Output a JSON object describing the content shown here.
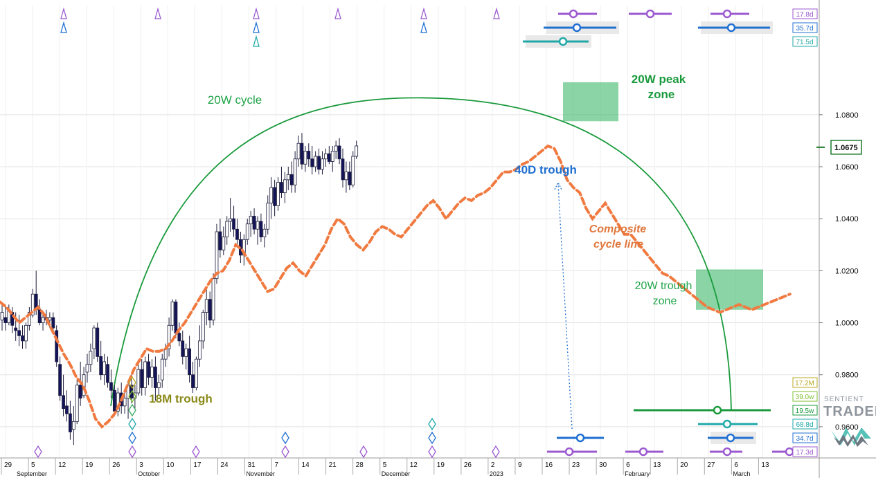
{
  "chart_data": {
    "type": "candlestick",
    "y_axis": {
      "ylim": [
        0.948,
        1.122
      ],
      "ticks": [
        "1.0800",
        "1.0600",
        "1.0400",
        "1.0200",
        "1.0000",
        "0.9800",
        "0.9600"
      ],
      "tick_values": [
        1.08,
        1.06,
        1.04,
        1.02,
        1.0,
        0.98,
        0.96
      ],
      "last_price_label": "1.0675",
      "last_price": 1.0675
    },
    "x_axis": {
      "day_ticks": [
        "29",
        "5",
        "12",
        "19",
        "26",
        "3",
        "10",
        "17",
        "24",
        "31",
        "7",
        "14",
        "21",
        "28",
        "5",
        "12",
        "19",
        "26",
        "2",
        "9",
        "16",
        "23",
        "30",
        "6",
        "13",
        "20",
        "27",
        "6",
        "13"
      ],
      "months": [
        "September",
        "October",
        "November",
        "December",
        "2023",
        "February",
        "March"
      ],
      "month_ticks": [
        1,
        5,
        9,
        14,
        18,
        23,
        27
      ]
    },
    "candles": [
      {
        "o": 1.001,
        "h": 1.0075,
        "l": 0.997,
        "c": 1.004
      },
      {
        "o": 1.002,
        "h": 1.006,
        "l": 0.997,
        "c": 1.0
      },
      {
        "o": 1.0,
        "h": 1.007,
        "l": 0.999,
        "c": 1.005
      },
      {
        "o": 1.004,
        "h": 1.006,
        "l": 0.996,
        "c": 0.999
      },
      {
        "o": 0.998,
        "h": 1.004,
        "l": 0.993,
        "c": 0.997
      },
      {
        "o": 0.997,
        "h": 1.003,
        "l": 0.991,
        "c": 0.995
      },
      {
        "o": 0.995,
        "h": 0.999,
        "l": 0.99,
        "c": 0.993
      },
      {
        "o": 0.993,
        "h": 1.0,
        "l": 0.99,
        "c": 0.999
      },
      {
        "o": 0.999,
        "h": 1.006,
        "l": 0.997,
        "c": 1.004
      },
      {
        "o": 1.003,
        "h": 1.013,
        "l": 1.002,
        "c": 1.011
      },
      {
        "o": 1.011,
        "h": 1.02,
        "l": 1.003,
        "c": 1.005
      },
      {
        "o": 1.005,
        "h": 1.009,
        "l": 0.999,
        "c": 1.0
      },
      {
        "o": 1.0,
        "h": 1.004,
        "l": 0.997,
        "c": 1.002
      },
      {
        "o": 1.002,
        "h": 1.005,
        "l": 0.999,
        "c": 1.001
      },
      {
        "o": 1.001,
        "h": 1.004,
        "l": 0.998,
        "c": 1.002
      },
      {
        "o": 1.002,
        "h": 1.004,
        "l": 0.996,
        "c": 0.998
      },
      {
        "o": 0.997,
        "h": 0.999,
        "l": 0.983,
        "c": 0.985
      },
      {
        "o": 0.984,
        "h": 0.987,
        "l": 0.97,
        "c": 0.972
      },
      {
        "o": 0.972,
        "h": 0.98,
        "l": 0.964,
        "c": 0.967
      },
      {
        "o": 0.968,
        "h": 0.974,
        "l": 0.962,
        "c": 0.965
      },
      {
        "o": 0.965,
        "h": 0.97,
        "l": 0.955,
        "c": 0.958
      },
      {
        "o": 0.959,
        "h": 0.968,
        "l": 0.953,
        "c": 0.962
      },
      {
        "o": 0.962,
        "h": 0.978,
        "l": 0.961,
        "c": 0.976
      },
      {
        "o": 0.976,
        "h": 0.985,
        "l": 0.968,
        "c": 0.971
      },
      {
        "o": 0.972,
        "h": 0.983,
        "l": 0.971,
        "c": 0.98
      },
      {
        "o": 0.981,
        "h": 0.988,
        "l": 0.977,
        "c": 0.984
      },
      {
        "o": 0.984,
        "h": 0.992,
        "l": 0.981,
        "c": 0.989
      },
      {
        "o": 0.99,
        "h": 0.999,
        "l": 0.986,
        "c": 0.998
      },
      {
        "o": 0.998,
        "h": 1.0,
        "l": 0.985,
        "c": 0.987
      },
      {
        "o": 0.987,
        "h": 0.993,
        "l": 0.978,
        "c": 0.98
      },
      {
        "o": 0.98,
        "h": 0.988,
        "l": 0.976,
        "c": 0.985
      },
      {
        "o": 0.984,
        "h": 0.987,
        "l": 0.975,
        "c": 0.977
      },
      {
        "o": 0.977,
        "h": 0.982,
        "l": 0.971,
        "c": 0.974
      },
      {
        "o": 0.974,
        "h": 0.976,
        "l": 0.964,
        "c": 0.966
      },
      {
        "o": 0.966,
        "h": 0.975,
        "l": 0.964,
        "c": 0.973
      },
      {
        "o": 0.973,
        "h": 0.977,
        "l": 0.965,
        "c": 0.968
      },
      {
        "o": 0.968,
        "h": 0.974,
        "l": 0.965,
        "c": 0.971
      },
      {
        "o": 0.971,
        "h": 0.978,
        "l": 0.963,
        "c": 0.976
      },
      {
        "o": 0.976,
        "h": 0.98,
        "l": 0.969,
        "c": 0.971
      },
      {
        "o": 0.971,
        "h": 0.976,
        "l": 0.967,
        "c": 0.973
      },
      {
        "o": 0.973,
        "h": 0.984,
        "l": 0.972,
        "c": 0.982
      },
      {
        "o": 0.982,
        "h": 0.986,
        "l": 0.972,
        "c": 0.975
      },
      {
        "o": 0.975,
        "h": 0.987,
        "l": 0.972,
        "c": 0.985
      },
      {
        "o": 0.985,
        "h": 0.988,
        "l": 0.976,
        "c": 0.979
      },
      {
        "o": 0.979,
        "h": 0.986,
        "l": 0.975,
        "c": 0.983
      },
      {
        "o": 0.983,
        "h": 0.987,
        "l": 0.97,
        "c": 0.975
      },
      {
        "o": 0.975,
        "h": 0.98,
        "l": 0.972,
        "c": 0.977
      },
      {
        "o": 0.978,
        "h": 0.988,
        "l": 0.975,
        "c": 0.986
      },
      {
        "o": 0.986,
        "h": 0.992,
        "l": 0.983,
        "c": 0.99
      },
      {
        "o": 0.99,
        "h": 1.002,
        "l": 0.987,
        "c": 0.999
      },
      {
        "o": 0.999,
        "h": 1.009,
        "l": 0.997,
        "c": 1.008
      },
      {
        "o": 1.008,
        "h": 1.009,
        "l": 0.994,
        "c": 0.996
      },
      {
        "o": 0.996,
        "h": 1.0,
        "l": 0.991,
        "c": 0.993
      },
      {
        "o": 0.993,
        "h": 0.997,
        "l": 0.984,
        "c": 0.987
      },
      {
        "o": 0.987,
        "h": 0.992,
        "l": 0.982,
        "c": 0.99
      },
      {
        "o": 0.99,
        "h": 0.995,
        "l": 0.977,
        "c": 0.98
      },
      {
        "o": 0.98,
        "h": 0.985,
        "l": 0.973,
        "c": 0.975
      },
      {
        "o": 0.975,
        "h": 0.987,
        "l": 0.974,
        "c": 0.986
      },
      {
        "o": 0.986,
        "h": 0.999,
        "l": 0.983,
        "c": 0.993
      },
      {
        "o": 0.993,
        "h": 1.005,
        "l": 0.99,
        "c": 1.004
      },
      {
        "o": 1.004,
        "h": 1.013,
        "l": 0.999,
        "c": 1.009
      },
      {
        "o": 1.009,
        "h": 1.012,
        "l": 0.998,
        "c": 1.001
      },
      {
        "o": 1.001,
        "h": 1.019,
        "l": 0.999,
        "c": 1.017
      },
      {
        "o": 1.017,
        "h": 1.038,
        "l": 1.015,
        "c": 1.035
      },
      {
        "o": 1.035,
        "h": 1.04,
        "l": 1.025,
        "c": 1.028
      },
      {
        "o": 1.028,
        "h": 1.037,
        "l": 1.026,
        "c": 1.033
      },
      {
        "o": 1.033,
        "h": 1.041,
        "l": 1.03,
        "c": 1.039
      },
      {
        "o": 1.039,
        "h": 1.048,
        "l": 1.035,
        "c": 1.04
      },
      {
        "o": 1.04,
        "h": 1.045,
        "l": 1.033,
        "c": 1.036
      },
      {
        "o": 1.036,
        "h": 1.04,
        "l": 1.03,
        "c": 1.032
      },
      {
        "o": 1.032,
        "h": 1.035,
        "l": 1.023,
        "c": 1.026
      },
      {
        "o": 1.026,
        "h": 1.034,
        "l": 1.022,
        "c": 1.032
      },
      {
        "o": 1.032,
        "h": 1.04,
        "l": 1.03,
        "c": 1.038
      },
      {
        "o": 1.038,
        "h": 1.043,
        "l": 1.033,
        "c": 1.041
      },
      {
        "o": 1.041,
        "h": 1.044,
        "l": 1.034,
        "c": 1.036
      },
      {
        "o": 1.036,
        "h": 1.041,
        "l": 1.03,
        "c": 1.039
      },
      {
        "o": 1.039,
        "h": 1.042,
        "l": 1.031,
        "c": 1.033
      },
      {
        "o": 1.033,
        "h": 1.038,
        "l": 1.029,
        "c": 1.036
      },
      {
        "o": 1.036,
        "h": 1.049,
        "l": 1.034,
        "c": 1.046
      },
      {
        "o": 1.046,
        "h": 1.056,
        "l": 1.04,
        "c": 1.052
      },
      {
        "o": 1.052,
        "h": 1.055,
        "l": 1.041,
        "c": 1.045
      },
      {
        "o": 1.045,
        "h": 1.056,
        "l": 1.043,
        "c": 1.054
      },
      {
        "o": 1.054,
        "h": 1.06,
        "l": 1.048,
        "c": 1.05
      },
      {
        "o": 1.05,
        "h": 1.058,
        "l": 1.046,
        "c": 1.055
      },
      {
        "o": 1.055,
        "h": 1.06,
        "l": 1.051,
        "c": 1.057
      },
      {
        "o": 1.057,
        "h": 1.062,
        "l": 1.05,
        "c": 1.053
      },
      {
        "o": 1.053,
        "h": 1.066,
        "l": 1.05,
        "c": 1.063
      },
      {
        "o": 1.063,
        "h": 1.072,
        "l": 1.06,
        "c": 1.069
      },
      {
        "o": 1.069,
        "h": 1.073,
        "l": 1.059,
        "c": 1.061
      },
      {
        "o": 1.061,
        "h": 1.068,
        "l": 1.058,
        "c": 1.066
      },
      {
        "o": 1.066,
        "h": 1.069,
        "l": 1.06,
        "c": 1.063
      },
      {
        "o": 1.063,
        "h": 1.068,
        "l": 1.057,
        "c": 1.06
      },
      {
        "o": 1.06,
        "h": 1.066,
        "l": 1.058,
        "c": 1.064
      },
      {
        "o": 1.064,
        "h": 1.067,
        "l": 1.057,
        "c": 1.059
      },
      {
        "o": 1.059,
        "h": 1.066,
        "l": 1.057,
        "c": 1.063
      },
      {
        "o": 1.063,
        "h": 1.067,
        "l": 1.06,
        "c": 1.065
      },
      {
        "o": 1.065,
        "h": 1.068,
        "l": 1.061,
        "c": 1.062
      },
      {
        "o": 1.062,
        "h": 1.068,
        "l": 1.058,
        "c": 1.066
      },
      {
        "o": 1.066,
        "h": 1.07,
        "l": 1.063,
        "c": 1.068
      },
      {
        "o": 1.068,
        "h": 1.071,
        "l": 1.061,
        "c": 1.063
      },
      {
        "o": 1.063,
        "h": 1.067,
        "l": 1.052,
        "c": 1.055
      },
      {
        "o": 1.055,
        "h": 1.062,
        "l": 1.05,
        "c": 1.058
      },
      {
        "o": 1.058,
        "h": 1.062,
        "l": 1.051,
        "c": 1.053
      },
      {
        "o": 1.053,
        "h": 1.066,
        "l": 1.052,
        "c": 1.064
      },
      {
        "o": 1.064,
        "h": 1.07,
        "l": 1.063,
        "c": 1.068
      }
    ],
    "composite_cycle_line": [
      1.008,
      1.006,
      1.003,
      1.0,
      1.002,
      1.004,
      1.006,
      1.003,
      0.998,
      0.993,
      0.988,
      0.984,
      0.979,
      0.976,
      0.97,
      0.963,
      0.96,
      0.962,
      0.965,
      0.97,
      0.976,
      0.982,
      0.986,
      0.99,
      0.989,
      0.989,
      0.99,
      0.993,
      0.997,
      1.0,
      1.004,
      1.008,
      1.012,
      1.016,
      1.019,
      1.02,
      1.024,
      1.03,
      1.028,
      1.024,
      1.02,
      1.016,
      1.012,
      1.013,
      1.017,
      1.021,
      1.023,
      1.02,
      1.018,
      1.022,
      1.026,
      1.03,
      1.036,
      1.04,
      1.038,
      1.033,
      1.03,
      1.028,
      1.031,
      1.035,
      1.037,
      1.036,
      1.034,
      1.033,
      1.036,
      1.039,
      1.042,
      1.045,
      1.047,
      1.044,
      1.04,
      1.043,
      1.046,
      1.048,
      1.047,
      1.049,
      1.05,
      1.052,
      1.055,
      1.058,
      1.058,
      1.059,
      1.061,
      1.062,
      1.064,
      1.066,
      1.068,
      1.067,
      1.062,
      1.055,
      1.052,
      1.05,
      1.044,
      1.04,
      1.043,
      1.046,
      1.042,
      1.038,
      1.034,
      1.034,
      1.031,
      1.028,
      1.025,
      1.022,
      1.019,
      1.018,
      1.016,
      1.014,
      1.012,
      1.01,
      1.008,
      1.006,
      1.005,
      1.004,
      1.005,
      1.006,
      1.007,
      1.006,
      1.005,
      1.006,
      1.007,
      1.008,
      1.009,
      1.01,
      1.011
    ],
    "annotations": [
      {
        "text": "20W cycle",
        "color": "#22a44a"
      },
      {
        "text": "20W peak",
        "text2": "zone",
        "color": "#1a9a3c"
      },
      {
        "text": "40D trough",
        "color": "#1f6fd1"
      },
      {
        "text": "Composite",
        "text2": "cycle line",
        "color": "#e0773c"
      },
      {
        "text": "20W trough",
        "text2": "zone",
        "color": "#22a44a"
      },
      {
        "text": "18M trough",
        "color": "#8a8a1a"
      }
    ],
    "cycle_labels_top": [
      {
        "text": "17.8d",
        "color": "#9b59d0"
      },
      {
        "text": "35.7d",
        "color": "#1f6fd1"
      },
      {
        "text": "71.5d",
        "color": "#20a8a8"
      }
    ],
    "cycle_labels_bottom": [
      {
        "text": "17.2M",
        "color": "#b8a820"
      },
      {
        "text": "39.0w",
        "color": "#7fbf30"
      },
      {
        "text": "19.5w",
        "color": "#1a9a3c"
      },
      {
        "text": "68.8d",
        "color": "#20a8a8"
      },
      {
        "text": "34.7d",
        "color": "#1f6fd1"
      },
      {
        "text": "17.3d",
        "color": "#9b59d0"
      }
    ]
  },
  "brand": {
    "line1": "SENTIENT",
    "line2": "TRADER"
  }
}
